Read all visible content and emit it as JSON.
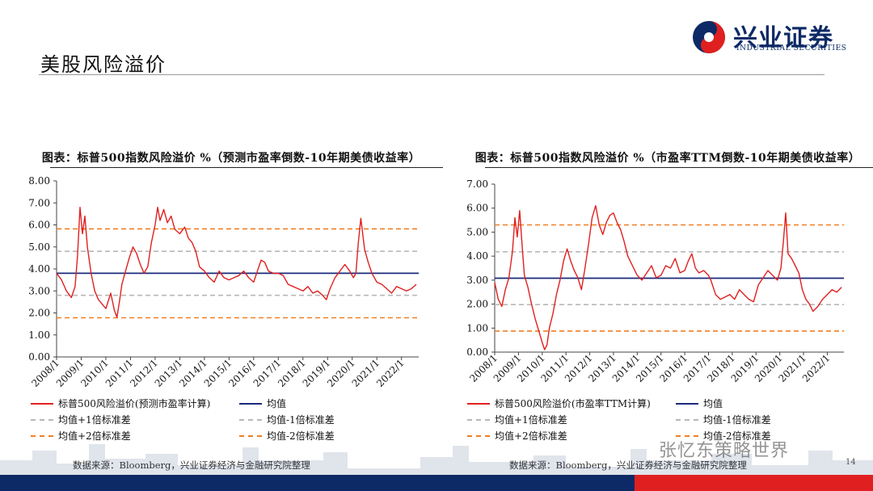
{
  "header": {
    "title": "美股风险溢价",
    "brand": "兴业证券",
    "brand_en": "INDUSTRIAL SECURITIES"
  },
  "footer": {
    "page_number": "14",
    "watermark": "张忆东策略世界"
  },
  "colors": {
    "series": "#e02020",
    "mean": "#1a2a7a",
    "sd1": "#b8b8b8",
    "sd2": "#f07f22",
    "brand_blue": "#0d2a66",
    "brand_red": "#e02020"
  },
  "chart_data": [
    {
      "type": "line",
      "title": "图表：标普500指数风险溢价 %（预测市盈率倒数-10年期美债收益率）",
      "xlabel": "",
      "ylabel": "",
      "ylim": [
        0,
        8
      ],
      "y_ticks": [
        "0.00",
        "1.00",
        "2.00",
        "3.00",
        "4.00",
        "5.00",
        "6.00",
        "7.00",
        "8.00"
      ],
      "x_ticks": [
        "2008/1",
        "2009/1",
        "2010/1",
        "2011/1",
        "2012/1",
        "2013/1",
        "2014/1",
        "2015/1",
        "2016/1",
        "2017/1",
        "2018/1",
        "2019/1",
        "2020/1",
        "2021/1",
        "2022/1"
      ],
      "x_range": [
        2008.0,
        2022.7
      ],
      "series": [
        {
          "name": "标普500风险溢价(预测市盈率计算)",
          "style": "solid",
          "color": "#e02020",
          "x": [
            2008.0,
            2008.2,
            2008.4,
            2008.6,
            2008.75,
            2008.85,
            2008.95,
            2009.05,
            2009.15,
            2009.25,
            2009.4,
            2009.55,
            2009.7,
            2009.85,
            2010.0,
            2010.2,
            2010.35,
            2010.45,
            2010.55,
            2010.65,
            2010.8,
            2010.95,
            2011.1,
            2011.25,
            2011.4,
            2011.55,
            2011.7,
            2011.85,
            2012.0,
            2012.1,
            2012.2,
            2012.35,
            2012.5,
            2012.65,
            2012.8,
            2013.0,
            2013.2,
            2013.35,
            2013.5,
            2013.65,
            2013.8,
            2014.0,
            2014.2,
            2014.4,
            2014.6,
            2014.8,
            2015.0,
            2015.2,
            2015.4,
            2015.6,
            2015.8,
            2016.0,
            2016.15,
            2016.3,
            2016.45,
            2016.6,
            2016.8,
            2017.0,
            2017.2,
            2017.4,
            2017.6,
            2017.8,
            2018.0,
            2018.2,
            2018.4,
            2018.6,
            2018.8,
            2018.95,
            2019.1,
            2019.3,
            2019.5,
            2019.7,
            2019.9,
            2020.05,
            2020.15,
            2020.25,
            2020.35,
            2020.5,
            2020.65,
            2020.8,
            2021.0,
            2021.2,
            2021.4,
            2021.6,
            2021.8,
            2022.0,
            2022.2,
            2022.4,
            2022.6
          ],
          "values": [
            3.8,
            3.5,
            3.0,
            2.7,
            3.2,
            4.6,
            6.8,
            5.6,
            6.4,
            5.0,
            3.8,
            3.0,
            2.6,
            2.4,
            2.2,
            2.9,
            2.1,
            1.8,
            2.5,
            3.3,
            3.9,
            4.5,
            5.0,
            4.7,
            4.2,
            3.8,
            4.1,
            5.2,
            6.0,
            6.8,
            6.2,
            6.7,
            6.1,
            6.4,
            5.8,
            5.6,
            5.9,
            5.4,
            5.2,
            4.8,
            4.1,
            3.9,
            3.6,
            3.4,
            3.9,
            3.6,
            3.5,
            3.6,
            3.7,
            3.9,
            3.6,
            3.4,
            3.9,
            4.4,
            4.3,
            3.9,
            3.8,
            3.8,
            3.7,
            3.3,
            3.2,
            3.1,
            3.0,
            3.2,
            2.9,
            3.0,
            2.8,
            2.6,
            3.1,
            3.6,
            3.9,
            4.2,
            3.9,
            3.6,
            3.8,
            5.2,
            6.3,
            4.9,
            4.3,
            3.8,
            3.4,
            3.3,
            3.1,
            2.9,
            3.2,
            3.1,
            3.0,
            3.1,
            3.3
          ]
        },
        {
          "name": "均值",
          "style": "solid",
          "color": "#1a2a7a",
          "x": [
            2008.0,
            2022.7
          ],
          "values": [
            3.8,
            3.8
          ]
        },
        {
          "name": "均值+1倍标准差",
          "style": "dashed",
          "color": "#b8b8b8",
          "x": [
            2008.0,
            2022.7
          ],
          "values": [
            4.8,
            4.8
          ]
        },
        {
          "name": "均值-1倍标准差",
          "style": "dashed",
          "color": "#b8b8b8",
          "x": [
            2008.0,
            2022.7
          ],
          "values": [
            2.8,
            2.8
          ]
        },
        {
          "name": "均值+2倍标准差",
          "style": "dashed",
          "color": "#f07f22",
          "x": [
            2008.0,
            2022.7
          ],
          "values": [
            5.82,
            5.82
          ]
        },
        {
          "name": "均值-2倍标准差",
          "style": "dashed",
          "color": "#f07f22",
          "x": [
            2008.0,
            2022.7
          ],
          "values": [
            1.78,
            1.78
          ]
        }
      ],
      "legend": [
        "标普500风险溢价(预测市盈率计算)",
        "均值",
        "均值+1倍标准差",
        "均值-1倍标准差",
        "均值+2倍标准差",
        "均值-2倍标准差"
      ],
      "legend_position": "bottom",
      "grid": false,
      "source": "数据来源：Bloomberg，兴业证券经济与金融研究院整理"
    },
    {
      "type": "line",
      "title": "图表：标普500指数风险溢价 %（市盈率TTM倒数-10年期美债收益率）",
      "xlabel": "",
      "ylabel": "",
      "ylim": [
        0,
        7
      ],
      "y_ticks": [
        "0.00",
        "1.00",
        "2.00",
        "3.00",
        "4.00",
        "5.00",
        "6.00",
        "7.00"
      ],
      "x_ticks": [
        "2008/1",
        "2009/1",
        "2010/1",
        "2011/1",
        "2012/1",
        "2013/1",
        "2014/1",
        "2015/1",
        "2016/1",
        "2017/1",
        "2018/1",
        "2019/1",
        "2020/1",
        "2021/1",
        "2022/1"
      ],
      "x_range": [
        2008.0,
        2022.7
      ],
      "series": [
        {
          "name": "标普500风险溢价(市盈率TTM计算)",
          "style": "solid",
          "color": "#e02020",
          "x": [
            2008.0,
            2008.15,
            2008.3,
            2008.45,
            2008.6,
            2008.75,
            2008.85,
            2008.95,
            2009.05,
            2009.15,
            2009.25,
            2009.4,
            2009.55,
            2009.7,
            2009.85,
            2010.0,
            2010.1,
            2010.2,
            2010.3,
            2010.45,
            2010.6,
            2010.75,
            2010.9,
            2011.05,
            2011.2,
            2011.35,
            2011.5,
            2011.65,
            2011.8,
            2011.95,
            2012.1,
            2012.25,
            2012.4,
            2012.55,
            2012.7,
            2012.85,
            2013.0,
            2013.15,
            2013.3,
            2013.45,
            2013.6,
            2013.8,
            2014.0,
            2014.2,
            2014.4,
            2014.6,
            2014.8,
            2015.0,
            2015.2,
            2015.4,
            2015.6,
            2015.8,
            2016.0,
            2016.15,
            2016.3,
            2016.45,
            2016.6,
            2016.8,
            2017.0,
            2017.1,
            2017.3,
            2017.5,
            2017.7,
            2017.9,
            2018.1,
            2018.3,
            2018.5,
            2018.7,
            2018.9,
            2019.1,
            2019.3,
            2019.5,
            2019.7,
            2019.9,
            2020.05,
            2020.15,
            2020.25,
            2020.35,
            2020.5,
            2020.65,
            2020.8,
            2020.95,
            2021.1,
            2021.25,
            2021.4,
            2021.6,
            2021.8,
            2022.0,
            2022.2,
            2022.4,
            2022.6
          ],
          "values": [
            2.9,
            2.2,
            1.9,
            2.6,
            3.1,
            4.2,
            5.6,
            4.8,
            5.9,
            4.5,
            3.2,
            2.7,
            2.0,
            1.4,
            0.9,
            0.4,
            0.1,
            0.3,
            1.0,
            1.6,
            2.4,
            3.0,
            3.8,
            4.3,
            3.8,
            3.4,
            3.1,
            2.6,
            3.5,
            4.5,
            5.6,
            6.1,
            5.3,
            4.9,
            5.4,
            5.7,
            5.8,
            5.4,
            5.1,
            4.6,
            4.0,
            3.6,
            3.2,
            3.0,
            3.3,
            3.6,
            3.1,
            3.2,
            3.6,
            3.5,
            3.9,
            3.3,
            3.4,
            3.8,
            4.1,
            3.5,
            3.3,
            3.4,
            3.2,
            3.0,
            2.4,
            2.2,
            2.3,
            2.4,
            2.2,
            2.6,
            2.4,
            2.2,
            2.1,
            2.8,
            3.1,
            3.4,
            3.2,
            3.0,
            3.5,
            4.6,
            5.8,
            4.1,
            3.9,
            3.6,
            3.3,
            2.6,
            2.2,
            2.0,
            1.7,
            1.9,
            2.2,
            2.4,
            2.6,
            2.5,
            2.7
          ]
        },
        {
          "name": "均值",
          "style": "solid",
          "color": "#1a2a7a",
          "x": [
            2008.0,
            2022.7
          ],
          "values": [
            3.08,
            3.08
          ]
        },
        {
          "name": "均值+1倍标准差",
          "style": "dashed",
          "color": "#b8b8b8",
          "x": [
            2008.0,
            2022.7
          ],
          "values": [
            4.18,
            4.18
          ]
        },
        {
          "name": "均值-1倍标准差",
          "style": "dashed",
          "color": "#b8b8b8",
          "x": [
            2008.0,
            2022.7
          ],
          "values": [
            1.98,
            1.98
          ]
        },
        {
          "name": "均值+2倍标准差",
          "style": "dashed",
          "color": "#f07f22",
          "x": [
            2008.0,
            2022.7
          ],
          "values": [
            5.3,
            5.3
          ]
        },
        {
          "name": "均值-2倍标准差",
          "style": "dashed",
          "color": "#f07f22",
          "x": [
            2008.0,
            2022.7
          ],
          "values": [
            0.88,
            0.88
          ]
        }
      ],
      "legend": [
        "标普500风险溢价(市盈率TTM计算)",
        "均值",
        "均值+1倍标准差",
        "均值-1倍标准差",
        "均值+2倍标准差",
        "均值-2倍标准差"
      ],
      "legend_position": "bottom",
      "grid": false,
      "source": "数据来源：Bloomberg，兴业证券经济与金融研究院整理"
    }
  ]
}
